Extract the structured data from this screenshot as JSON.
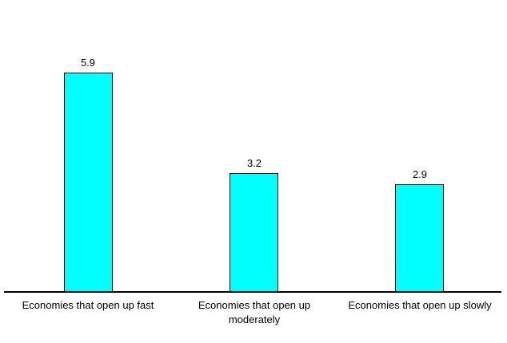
{
  "chart_data": {
    "type": "bar",
    "title": "",
    "xlabel": "",
    "ylabel": "",
    "categories": [
      "Economies that open up fast",
      "Economies that open up\nmoderately",
      "Economies that open up slowly"
    ],
    "values": [
      5.9,
      3.2,
      2.9
    ],
    "value_labels": [
      "5.9",
      "3.2",
      "2.9"
    ],
    "ylim": [
      0,
      7
    ],
    "grid": false,
    "legend": false,
    "y_axis_line": false,
    "x_axis_line": true,
    "bar_fill_color": "#00FFFF",
    "bar_border_color": "#000000",
    "axis_color": "#000000",
    "text_color": "#000000",
    "background_color": "#FFFFFF"
  }
}
